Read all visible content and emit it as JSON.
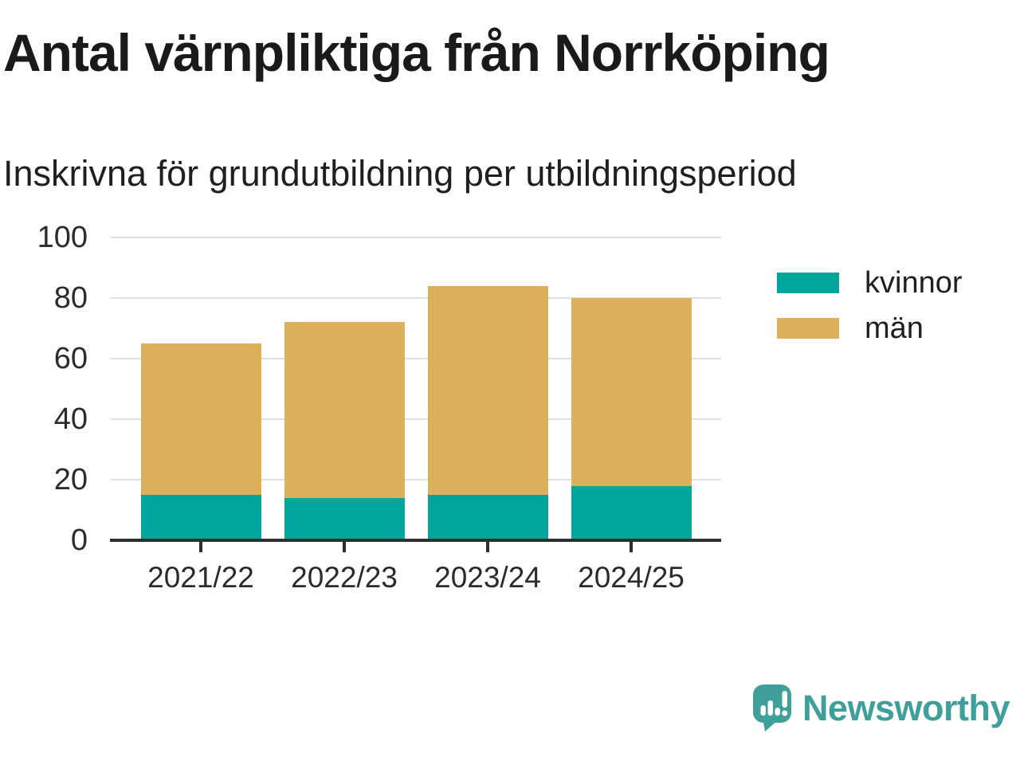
{
  "chart_data": {
    "type": "bar",
    "stacked": true,
    "title": "Antal värnpliktiga från Norrköping",
    "subtitle": "Inskrivna för grundutbildning per utbildningsperiod",
    "categories": [
      "2021/22",
      "2022/23",
      "2023/24",
      "2024/25"
    ],
    "series": [
      {
        "name": "kvinnor",
        "color": "#00A59B",
        "values": [
          15,
          14,
          15,
          18
        ]
      },
      {
        "name": "män",
        "color": "#DDB05C",
        "values": [
          50,
          58,
          69,
          62
        ]
      }
    ],
    "totals": [
      65,
      72,
      84,
      80
    ],
    "xlabel": "",
    "ylabel": "",
    "ylim": [
      0,
      100
    ],
    "yticks": [
      0,
      20,
      40,
      60,
      80,
      100
    ],
    "grid": "horizontal",
    "legend_position": "right-top"
  },
  "branding": {
    "logo_text": "Newsworthy",
    "logo_color": "#3FA09B",
    "logo_icon": "speech-bubble-with-bar-chart-and-exclamation"
  },
  "colors": {
    "background": "#FFFFFF",
    "title_text": "#1A1A1A",
    "axis_line": "#2E2E2E",
    "tick_labels": "#2B2B2B",
    "gridline": "#E0E0E0"
  }
}
